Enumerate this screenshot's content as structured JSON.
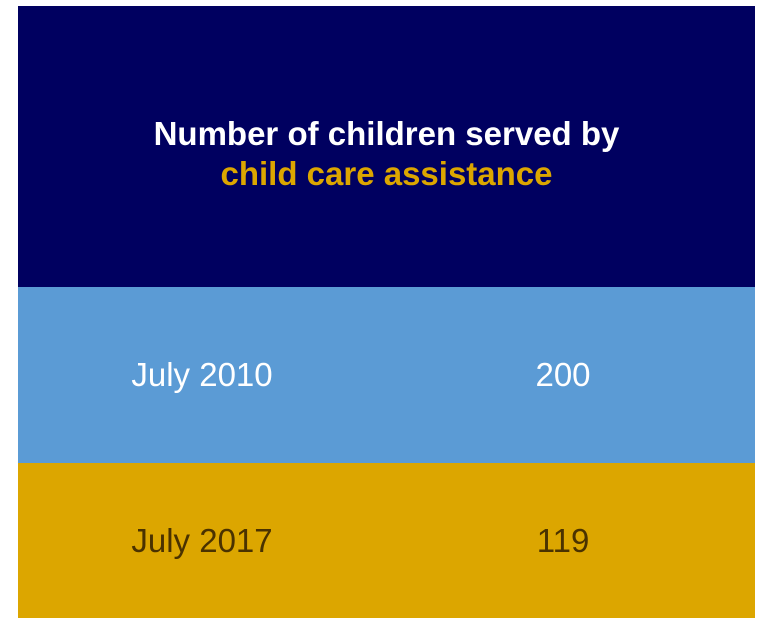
{
  "chart_data": {
    "type": "table",
    "title_line1": "Number of children served by",
    "title_line2": "child care assistance",
    "rows": [
      {
        "label": "July 2010",
        "value": "200"
      },
      {
        "label": "July 2017",
        "value": "119"
      }
    ]
  },
  "colors": {
    "header_bg": "#000060",
    "header_text": "#ffffff",
    "title_accent": "#dca600",
    "row_colors": [
      "#5b9bd5",
      "#dca600"
    ],
    "row_text_colors": [
      "#ffffff",
      "#4a3200"
    ]
  }
}
